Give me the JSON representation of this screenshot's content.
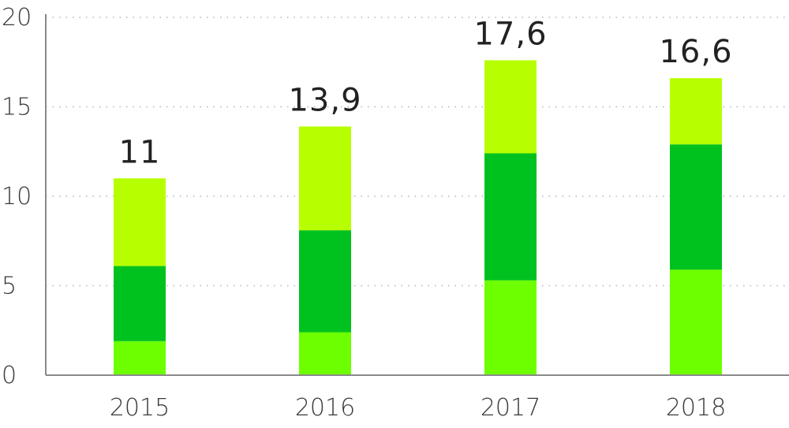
{
  "chart_data": {
    "type": "bar",
    "stacked": true,
    "categories": [
      "2015",
      "2016",
      "2017",
      "2018"
    ],
    "series": [
      {
        "color": "#6dff00",
        "values": [
          1.9,
          2.4,
          5.3,
          5.9
        ]
      },
      {
        "color": "#00c21f",
        "values": [
          4.2,
          5.7,
          7.1,
          7.0
        ]
      },
      {
        "color": "#b7ff00",
        "values": [
          4.9,
          5.8,
          5.2,
          3.7
        ]
      }
    ],
    "totals": [
      "11",
      "13,9",
      "17,6",
      "16,6"
    ],
    "y_ticks": [
      "0",
      "5",
      "10",
      "15",
      "20"
    ],
    "ylim": [
      0,
      20
    ],
    "grid": true,
    "grid_style": "dotted",
    "legend": false
  }
}
